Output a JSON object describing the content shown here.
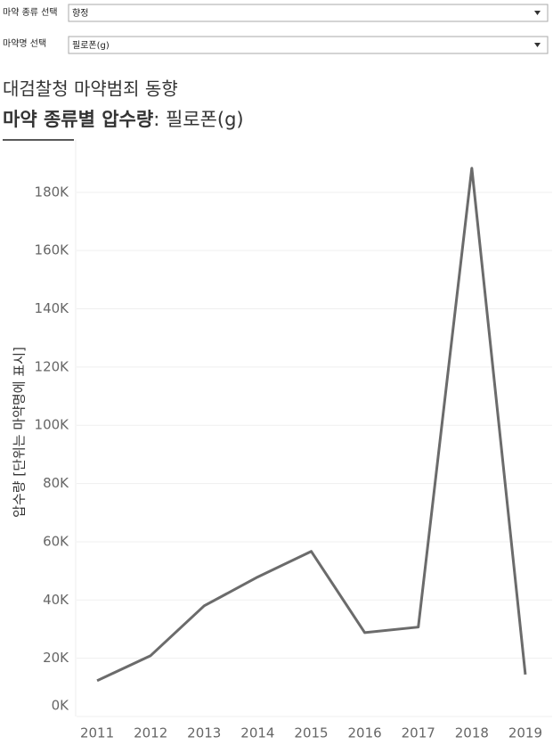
{
  "filters": [
    {
      "label": "마약 종류 선택",
      "selected": "향정"
    },
    {
      "label": "마약명 선택",
      "selected": "필로폰(g)"
    }
  ],
  "header": {
    "title": "대검찰청 마약범죄 동향",
    "subtitle_bold": "마약 종류별 압수량",
    "subtitle_rest": ": 필로폰(g)"
  },
  "chart_data": {
    "type": "line",
    "y_label": "압수량 [단위는 마약명에 표시]",
    "categories": [
      "2011",
      "2012",
      "2013",
      "2014",
      "2015",
      "2016",
      "2017",
      "2018",
      "2019"
    ],
    "values": [
      12300,
      20900,
      38000,
      47900,
      56700,
      28800,
      30700,
      188300,
      14400
    ],
    "color": "#6b6b6b",
    "ylim": [
      0,
      198000
    ],
    "yticks": [
      {
        "value": 0,
        "label": "0K"
      },
      {
        "value": 20000,
        "label": "20K"
      },
      {
        "value": 40000,
        "label": "40K"
      },
      {
        "value": 60000,
        "label": "60K"
      },
      {
        "value": 80000,
        "label": "80K"
      },
      {
        "value": 100000,
        "label": "100K"
      },
      {
        "value": 120000,
        "label": "120K"
      },
      {
        "value": 140000,
        "label": "140K"
      },
      {
        "value": 160000,
        "label": "160K"
      },
      {
        "value": 180000,
        "label": "180K"
      }
    ],
    "grid": true
  }
}
